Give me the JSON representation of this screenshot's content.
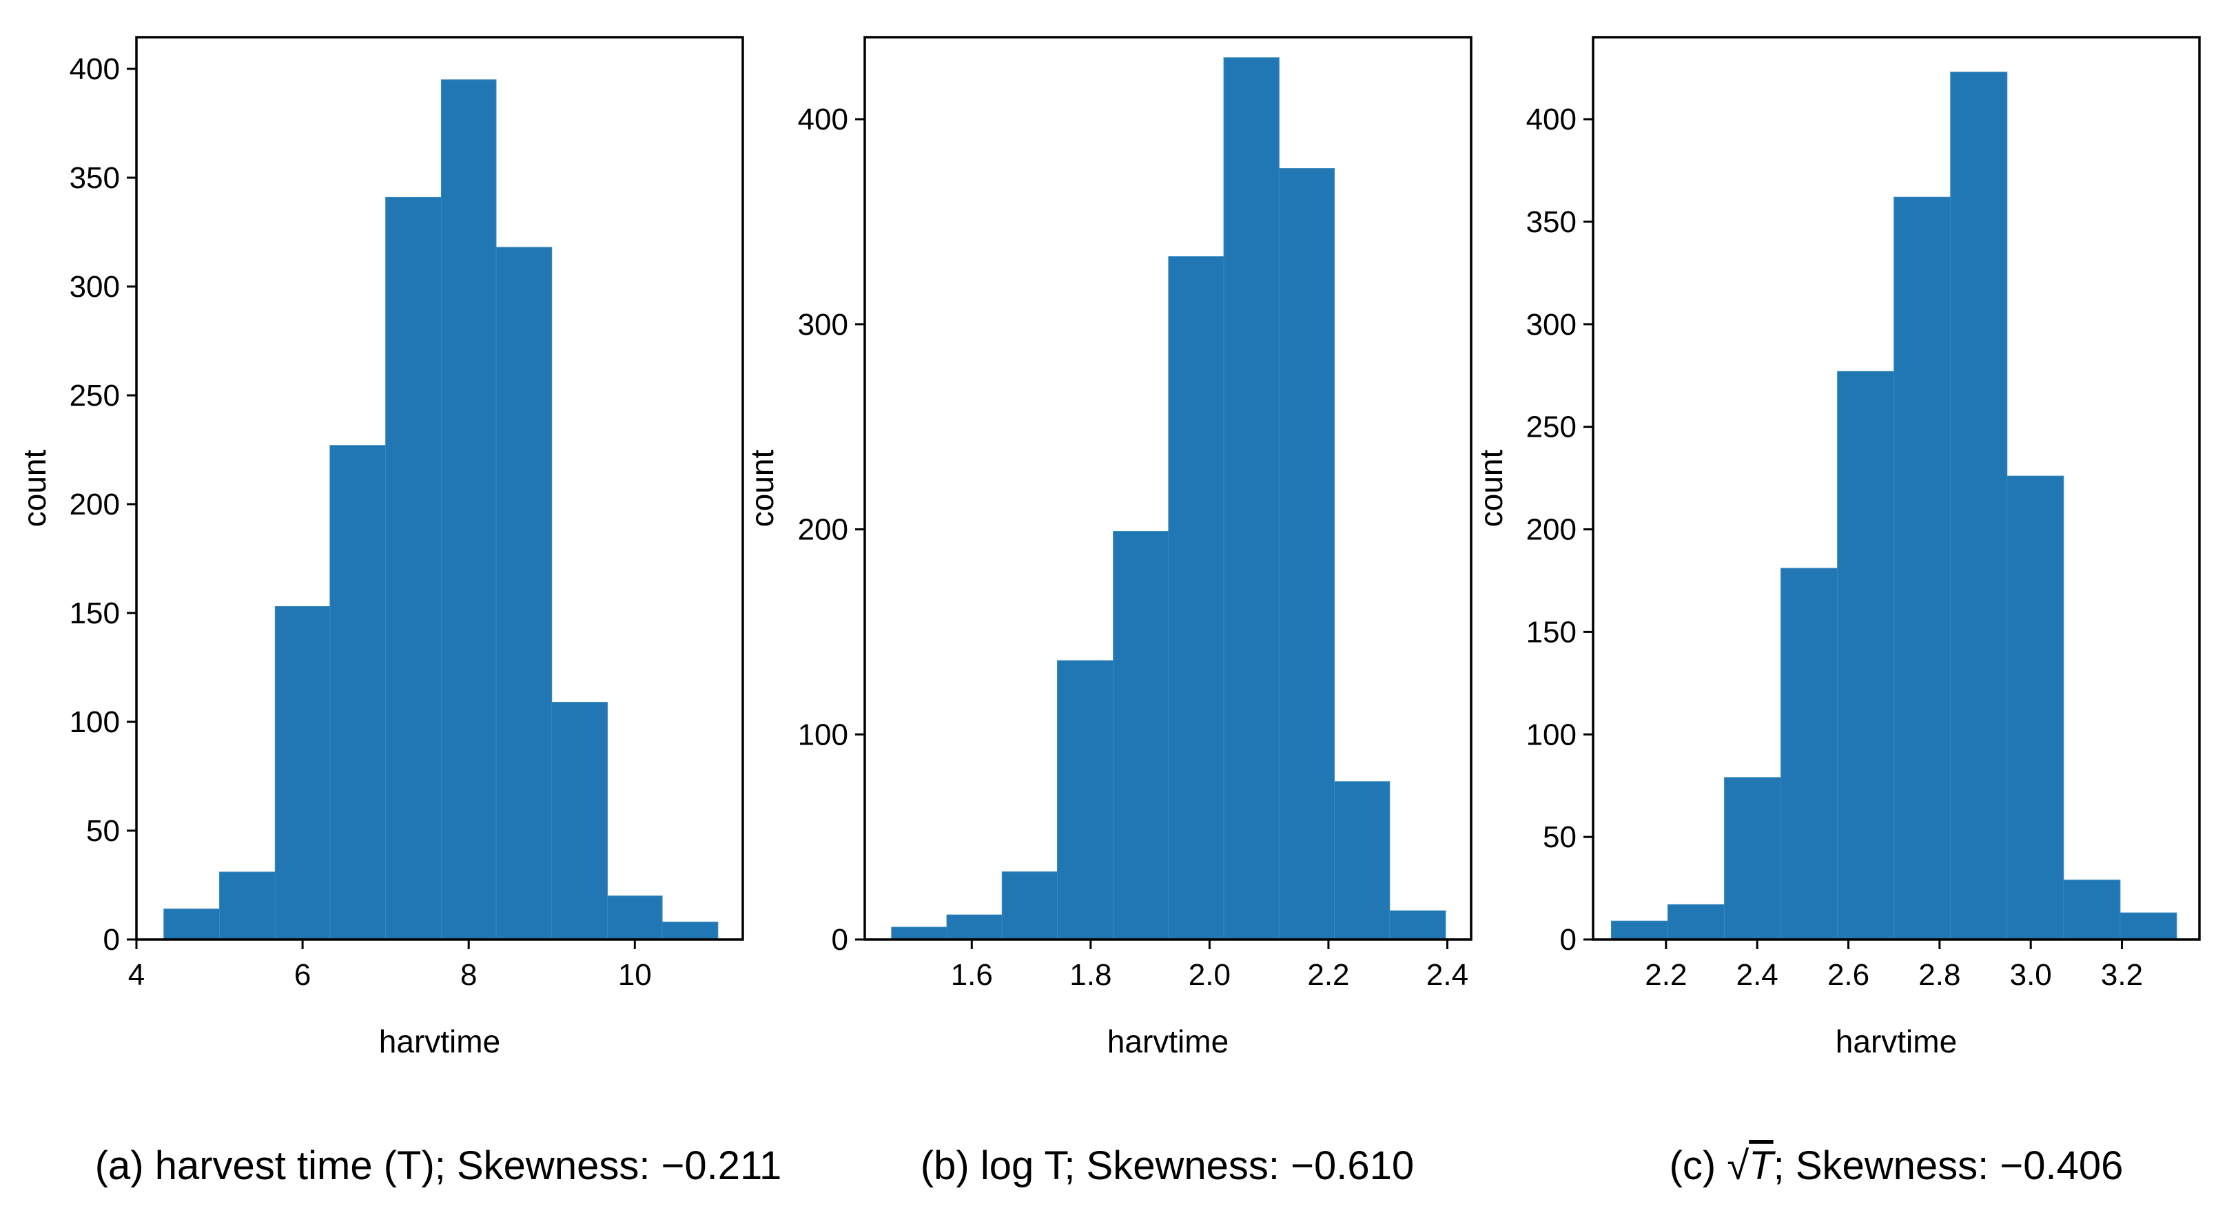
{
  "chart_data": [
    {
      "type": "bar",
      "id": "a",
      "caption": "(a) harvest time (T); Skewness: −0.211",
      "xlabel": "harvtime",
      "ylabel": "count",
      "xlim": [
        4.0,
        11.3
      ],
      "ylim": [
        0,
        400
      ],
      "xticks": [
        4,
        6,
        8,
        10
      ],
      "xtick_labels": [
        "4",
        "6",
        "8",
        "10"
      ],
      "yticks": [
        0,
        50,
        100,
        150,
        200,
        250,
        300,
        350,
        400
      ],
      "ytick_labels": [
        "0",
        "50",
        "100",
        "150",
        "200",
        "250",
        "300",
        "350",
        "400"
      ],
      "bin_edges": [
        4.33,
        5.0,
        5.67,
        6.33,
        7.0,
        7.67,
        8.33,
        9.0,
        9.67,
        10.33,
        11.0
      ],
      "values": [
        14,
        31,
        153,
        227,
        341,
        395,
        318,
        109,
        20,
        8
      ]
    },
    {
      "type": "bar",
      "id": "b",
      "caption": "(b) log T; Skewness: −0.610",
      "xlabel": "harvtime",
      "ylabel": "count",
      "xlim": [
        1.42,
        2.44
      ],
      "ylim": [
        0,
        440
      ],
      "xticks": [
        1.6,
        1.8,
        2.0,
        2.2,
        2.4
      ],
      "xtick_labels": [
        "1.6",
        "1.8",
        "2.0",
        "2.2",
        "2.4"
      ],
      "yticks": [
        0,
        100,
        200,
        300,
        400
      ],
      "ytick_labels": [
        "0",
        "100",
        "200",
        "300",
        "400"
      ],
      "bin_edges": [
        1.465,
        1.558,
        1.651,
        1.744,
        1.838,
        1.931,
        2.024,
        2.117,
        2.21,
        2.303,
        2.397
      ],
      "values": [
        6,
        12,
        33,
        136,
        199,
        333,
        430,
        376,
        77,
        14
      ]
    },
    {
      "type": "bar",
      "id": "c",
      "caption_prefix": "(c) ",
      "caption_radical": "√",
      "caption_var": "T",
      "caption_suffix": "; Skewness: −0.406",
      "xlabel": "harvtime",
      "ylabel": "count",
      "xlim": [
        2.04,
        3.37
      ],
      "ylim": [
        0,
        440
      ],
      "xticks": [
        2.2,
        2.4,
        2.6,
        2.8,
        3.0,
        3.2
      ],
      "xtick_labels": [
        "2.2",
        "2.4",
        "2.6",
        "2.8",
        "3.0",
        "3.2"
      ],
      "yticks": [
        0,
        50,
        100,
        150,
        200,
        250,
        300,
        350,
        400
      ],
      "ytick_labels": [
        "0",
        "50",
        "100",
        "150",
        "200",
        "250",
        "300",
        "350",
        "400"
      ],
      "bin_edges": [
        2.08,
        2.204,
        2.328,
        2.452,
        2.576,
        2.7,
        2.824,
        2.948,
        3.072,
        3.196,
        3.32
      ],
      "values": [
        9,
        17,
        79,
        181,
        277,
        362,
        423,
        226,
        29,
        13
      ]
    }
  ],
  "colors": {
    "bar": "#2077b4",
    "bar_edge": "#3a87bd",
    "axis": "#000000"
  }
}
